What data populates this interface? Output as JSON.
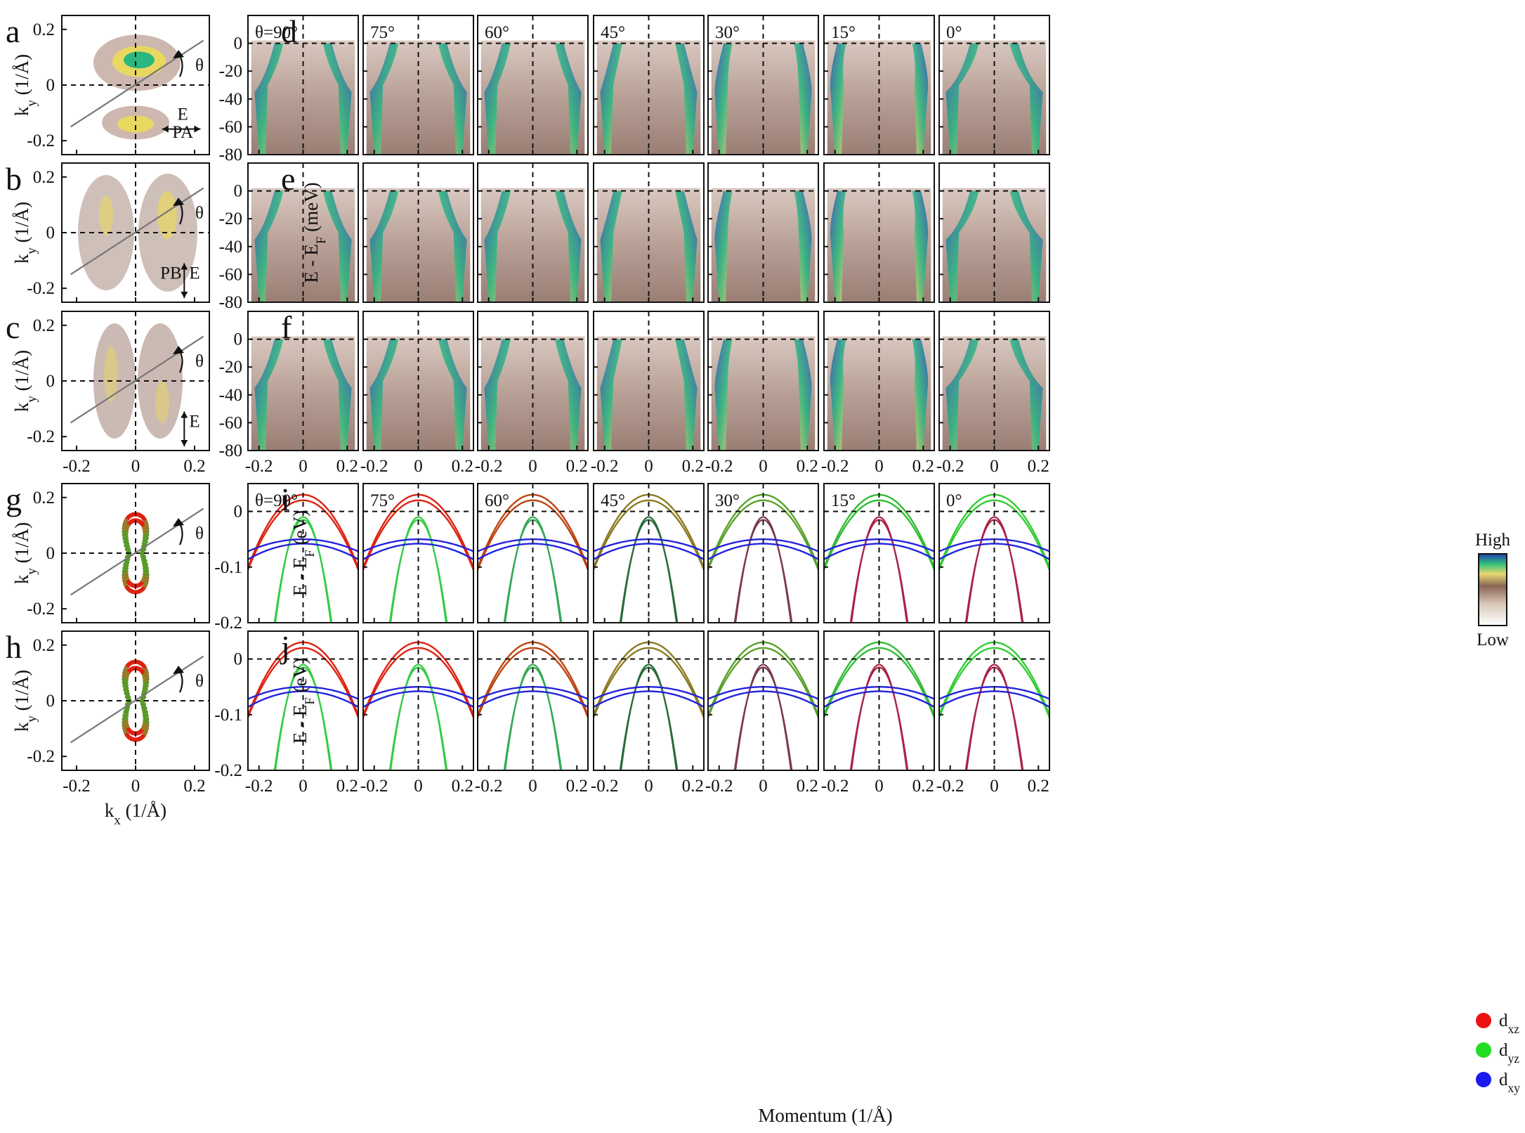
{
  "figure": {
    "panel_letters": [
      "a",
      "b",
      "c",
      "d",
      "e",
      "f",
      "g",
      "h",
      "i",
      "j"
    ],
    "fs_ticks_k": [
      "-0.2",
      "0",
      "0.2"
    ],
    "ky_label": "k",
    "ky_sub": "y",
    "kx_label": "k",
    "kx_sub": "x",
    "k_unit": " (1/Å)",
    "theta_symbol": "θ",
    "pol_labels": {
      "a_top": "E",
      "a_bottom": "PA",
      "b_left": "PB",
      "b_right": "E",
      "c": "E"
    },
    "angles": [
      "θ=90°",
      "75°",
      "60°",
      "45°",
      "30°",
      "15°",
      "0°"
    ],
    "arpes_energy_ticks": [
      "0",
      "-20",
      "-40",
      "-60",
      "-80"
    ],
    "arpes_ylabel_main": "E - E",
    "arpes_ylabel_sub": "F",
    "arpes_ylabel_unit": " (meV)",
    "momentum_ticks": [
      "-0.2",
      "0",
      "0.2"
    ],
    "momentum_label": "Momentum (1/Å)",
    "calc_energy_ticks": [
      "0",
      "-0.1",
      "-0.2"
    ],
    "calc_ylabel_unit": " (eV)",
    "colorbar": {
      "high": "High",
      "low": "Low"
    },
    "orbital_legend": [
      {
        "main": "d",
        "sub": "xz",
        "color": "#ee1111"
      },
      {
        "main": "d",
        "sub": "yz",
        "color": "#22dd22"
      },
      {
        "main": "d",
        "sub": "xy",
        "color": "#1a1aee"
      }
    ]
  }
}
